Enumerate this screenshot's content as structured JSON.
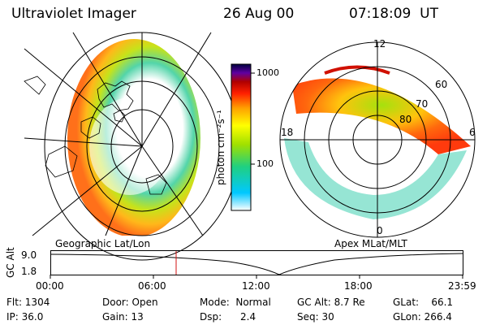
{
  "header": {
    "instrument": "Ultraviolet Imager",
    "date": "26 Aug 00",
    "time": "07:18:09  UT"
  },
  "left_panel": {
    "label": "Geographic Lat/Lon"
  },
  "right_panel": {
    "label": "Apex MLat/MLT",
    "mlt_labels": [
      "12",
      "18",
      "6",
      "0"
    ],
    "lat_labels": [
      "60",
      "70",
      "80"
    ]
  },
  "colorbar": {
    "ticks": [
      "1000",
      "100"
    ],
    "unit_label": "photon cm⁻²s⁻¹",
    "scale": "log"
  },
  "altitude_plot": {
    "ylabel": "GC Alt",
    "yticks": [
      "9.0",
      "1.8"
    ],
    "xticks": [
      "00:00",
      "06:00",
      "12:00",
      "18:00",
      "23:59"
    ],
    "marker_time": "07:18:09"
  },
  "info": {
    "flt": "Flt: 1304",
    "ip": "IP: 36.0",
    "door": "Door: Open",
    "gain": "Gain: 13",
    "mode": "Mode:  Normal",
    "dsp": "Dsp:      2.4",
    "gcalt": "GC Alt: 8.7 Re",
    "seq": "Seq: 30",
    "glat": "GLat:    66.1",
    "glon": "GLon: 266.4"
  },
  "colors": {
    "marker": "#d01010",
    "gradient": [
      "#ffffff",
      "#00c0ff",
      "#20d080",
      "#a0e000",
      "#ffff00",
      "#ffa000",
      "#ff2000",
      "#b00000",
      "#6000a0",
      "#000040"
    ]
  }
}
